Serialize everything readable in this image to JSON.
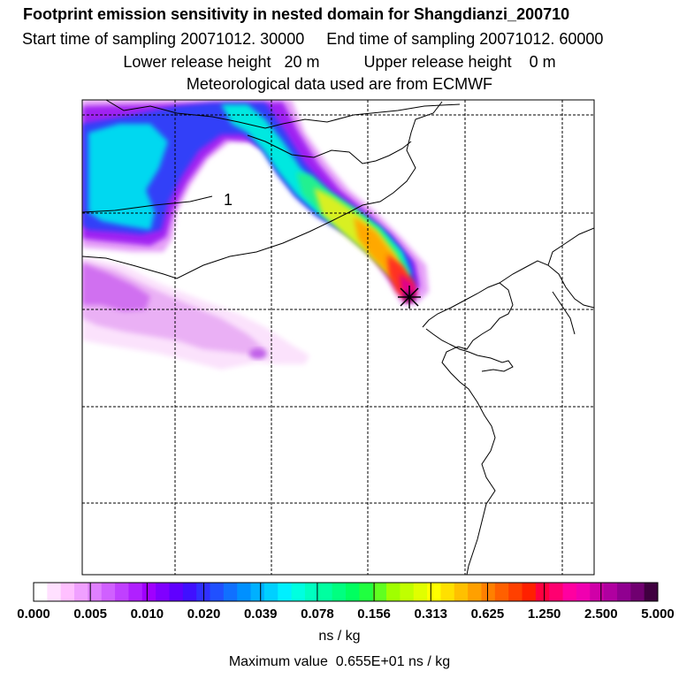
{
  "header": {
    "title": "Footprint emission sensitivity in nested domain for Shangdianzi_200710",
    "line2": "Start time of sampling 20071012. 30000     End time of sampling 20071012. 60000",
    "line3": "Lower release height   20 m          Upper release height    0 m",
    "line4": "Meteorological data used are from ECMWF"
  },
  "map": {
    "region_label": "1",
    "receptor": "Shangdianzi",
    "grid": "dashed",
    "plume_colors": [
      "#ffe6ff",
      "#e080ff",
      "#a000f0",
      "#4020ff",
      "#00b8ff",
      "#00ffe0",
      "#00ff80",
      "#a0ff00",
      "#ffff00",
      "#ffa000",
      "#ff2000",
      "#ff0090",
      "#a00080"
    ]
  },
  "colorbar": {
    "ticks": [
      "0.000",
      "0.005",
      "0.010",
      "0.020",
      "0.039",
      "0.078",
      "0.156",
      "0.313",
      "0.625",
      "1.250",
      "2.500",
      "5.000"
    ],
    "colors": [
      "#ffffff",
      "#ffe0ff",
      "#ffc0ff",
      "#f0a0ff",
      "#e080ff",
      "#d060ff",
      "#c040ff",
      "#b020ff",
      "#a000ff",
      "#8000ff",
      "#6000ff",
      "#4010ff",
      "#3030ff",
      "#2050ff",
      "#1070ff",
      "#0090ff",
      "#00b0ff",
      "#00d0ff",
      "#00f0ff",
      "#00ffe0",
      "#00ffc0",
      "#00ffa0",
      "#00ff80",
      "#00ff60",
      "#20ff40",
      "#60ff20",
      "#a0ff00",
      "#c0ff00",
      "#e0ff00",
      "#ffff00",
      "#ffe000",
      "#ffc000",
      "#ffa000",
      "#ff8000",
      "#ff6000",
      "#ff4000",
      "#ff2000",
      "#ff0040",
      "#ff0070",
      "#ff00a0",
      "#f000b0",
      "#d000a8",
      "#b000a0",
      "#900090",
      "#700070",
      "#400040"
    ],
    "units": "ns / kg",
    "max_value_text": "Maximum value  0.655E+01 ns / kg"
  }
}
